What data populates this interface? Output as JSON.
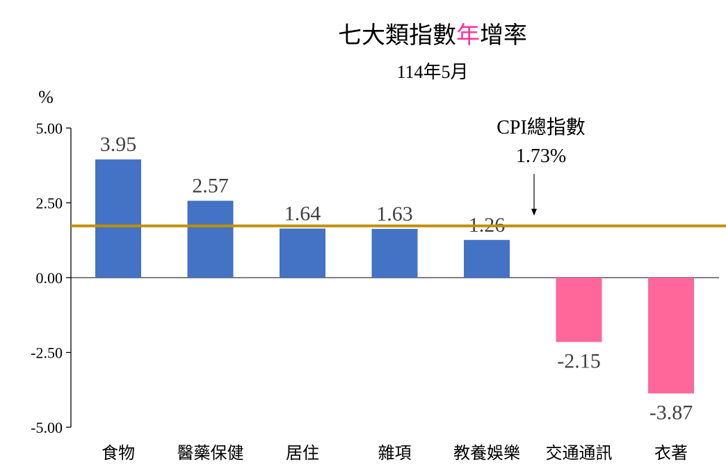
{
  "chart_data": {
    "type": "bar",
    "title_parts": [
      {
        "text": "七大類指數",
        "color": "#000000"
      },
      {
        "text": "年",
        "color": "#ff3399"
      },
      {
        "text": "增率",
        "color": "#000000"
      }
    ],
    "subtitle": "114年5月",
    "ylabel": "%",
    "ylim": [
      -5,
      5
    ],
    "yticks": [
      5,
      2.5,
      0,
      -2.5,
      -5
    ],
    "ytick_labels": [
      "5.00",
      "2.50",
      "0.00",
      "-2.50",
      "-5.00"
    ],
    "categories": [
      "食物",
      "醫藥保健",
      "居住",
      "雜項",
      "教養娛樂",
      "交通通訊",
      "衣著"
    ],
    "values": [
      3.95,
      2.57,
      1.64,
      1.63,
      1.26,
      -2.15,
      -3.87
    ],
    "data_labels": [
      "3.95",
      "2.57",
      "1.64",
      "1.63",
      "1.26",
      "-2.15",
      "-3.87"
    ],
    "colors": {
      "positive": "#4472c4",
      "negative": "#ff6699",
      "reference_line": "#bf9000",
      "axis": "#000000",
      "label_text": "#404040"
    },
    "reference": {
      "value": 1.73,
      "label_line1": "CPI總指數",
      "label_line2": "1.73%"
    },
    "grid": false,
    "legend": "none"
  }
}
